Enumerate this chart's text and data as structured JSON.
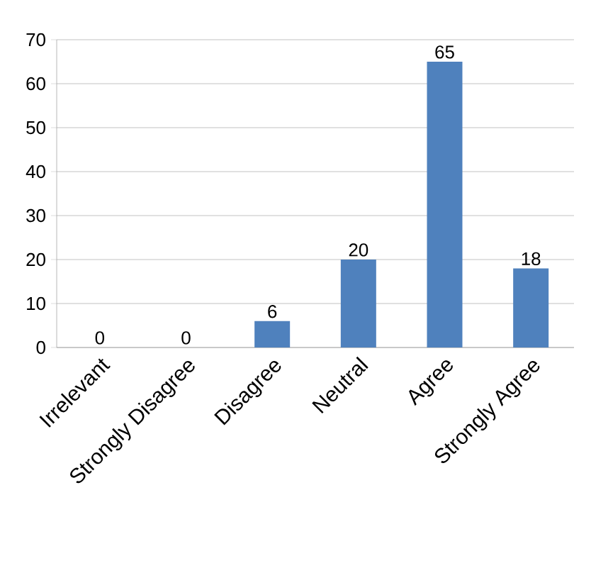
{
  "chart_data": {
    "type": "bar",
    "categories": [
      "Irrelevant",
      "Strongly Disagree",
      "Disagree",
      "Neutral",
      "Agree",
      "Strongly Agree"
    ],
    "values": [
      0,
      0,
      6,
      20,
      65,
      18
    ],
    "color": "#4f81bd",
    "ylim": [
      0,
      70
    ],
    "yticks": [
      0,
      10,
      20,
      30,
      40,
      50,
      60,
      70
    ],
    "grid": "y",
    "data_labels": true
  }
}
